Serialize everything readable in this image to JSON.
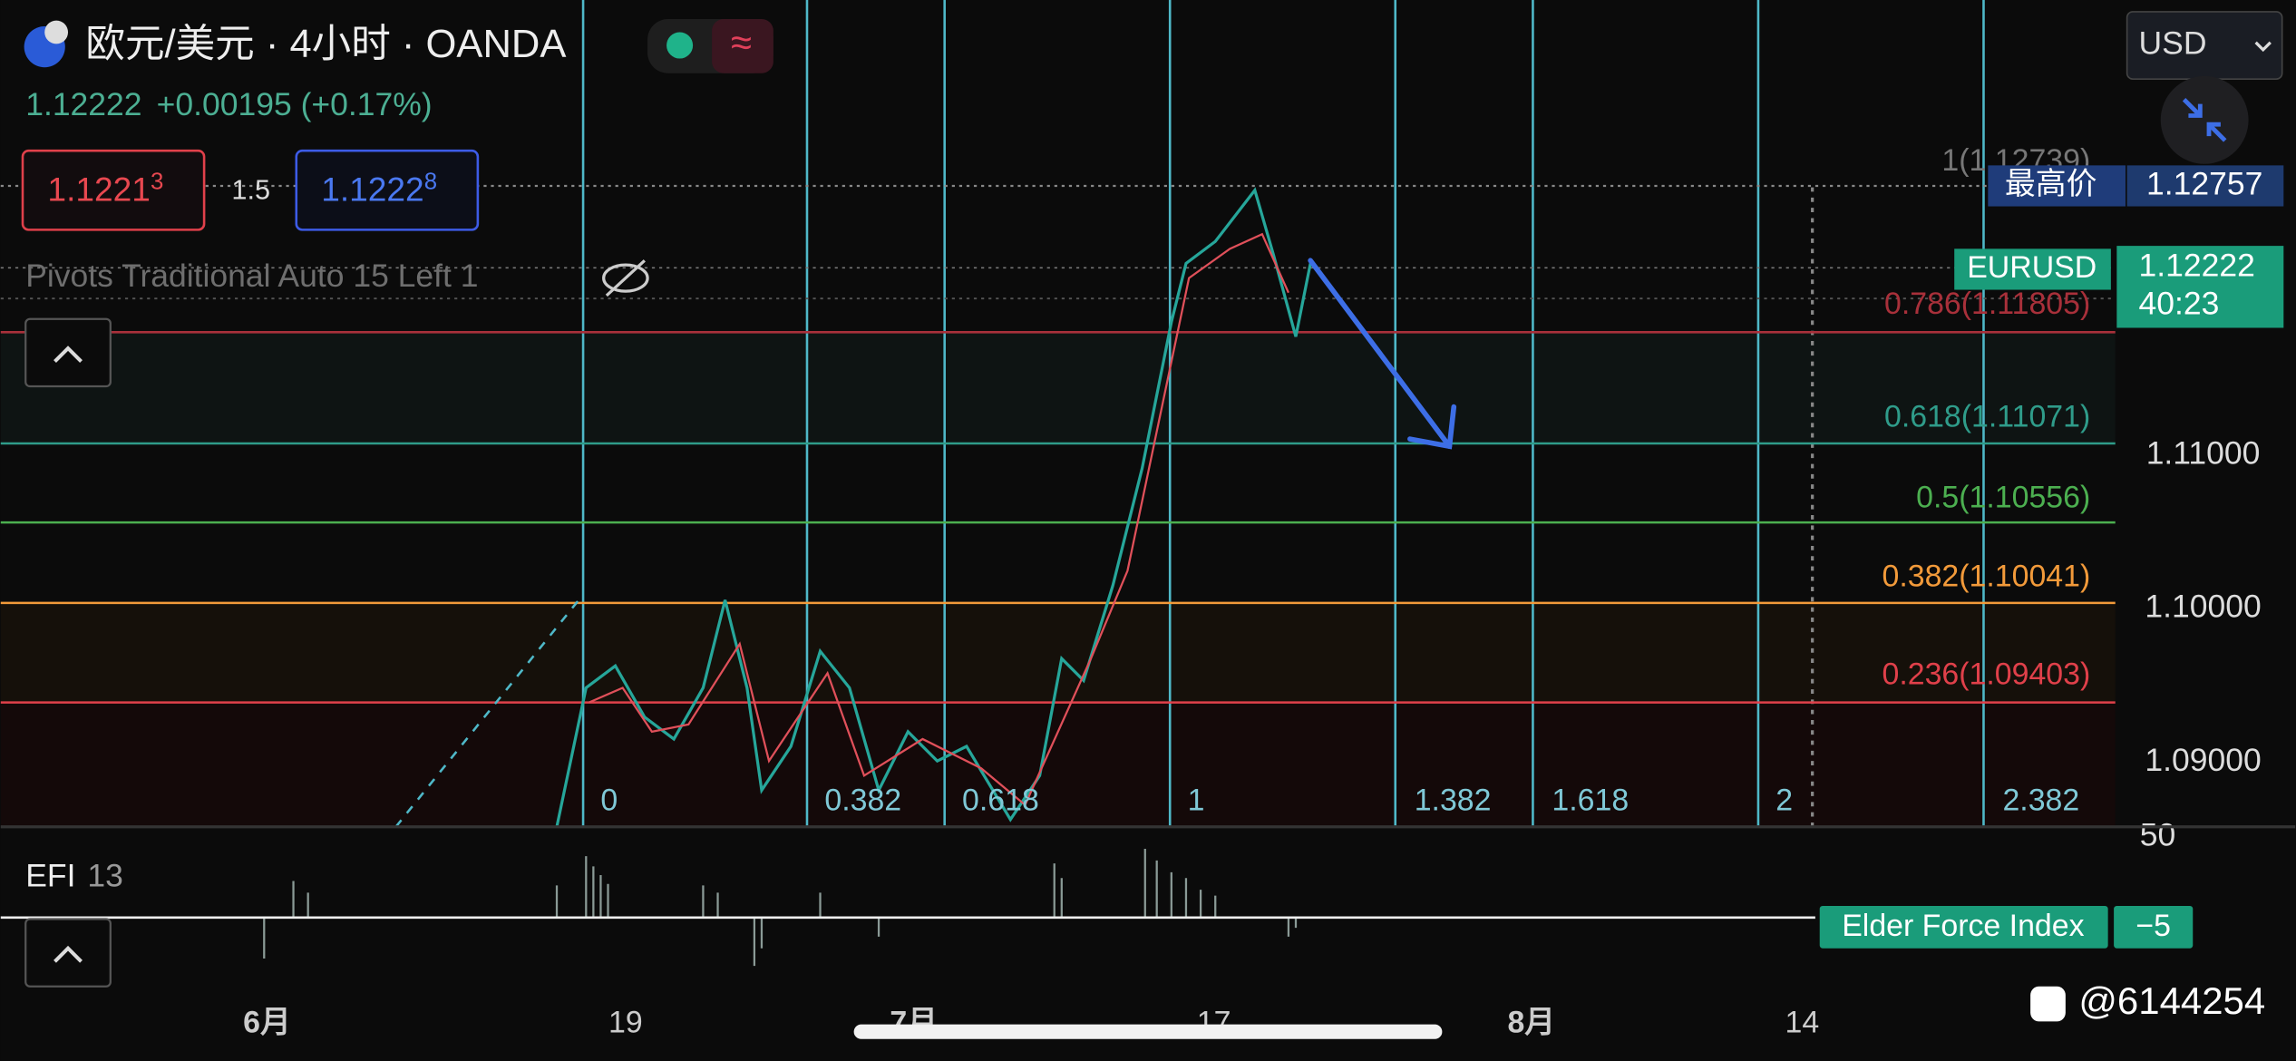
{
  "header": {
    "symbol": "欧元/美元 · 4小时 · OANDA",
    "price": "1.12222",
    "change": "+0.00195 (+0.17%)"
  },
  "order": {
    "sell": "1.1221",
    "sell_sup": "3",
    "spread": "1.5",
    "buy": "1.1222",
    "buy_sup": "8"
  },
  "indicator": "Pivots Traditional Auto 15 Left 1",
  "currency": "USD",
  "fib_levels": [
    "1(1.12739)",
    "0.786(1.11805)",
    "0.618(1.11071)",
    "0.5(1.10556)",
    "0.382(1.10041)",
    "0.236(1.09403)"
  ],
  "price_axis": [
    "1.11000",
    "1.10000",
    "1.09000",
    "50"
  ],
  "high": {
    "label": "最高价",
    "value": "1.12757"
  },
  "last": {
    "symbol": "EURUSD",
    "price": "1.12222",
    "countdown": "40:23"
  },
  "fib_time": [
    "0",
    "0.382",
    "0.618",
    "1",
    "1.382",
    "1.618",
    "2",
    "2.382"
  ],
  "efi": {
    "name": "EFI",
    "length": "13",
    "label": "Elder Force Index",
    "value": "−5"
  },
  "x_axis": [
    "6月",
    "19",
    "7月",
    "17",
    "8月",
    "14"
  ],
  "watermark": "@6144254"
}
